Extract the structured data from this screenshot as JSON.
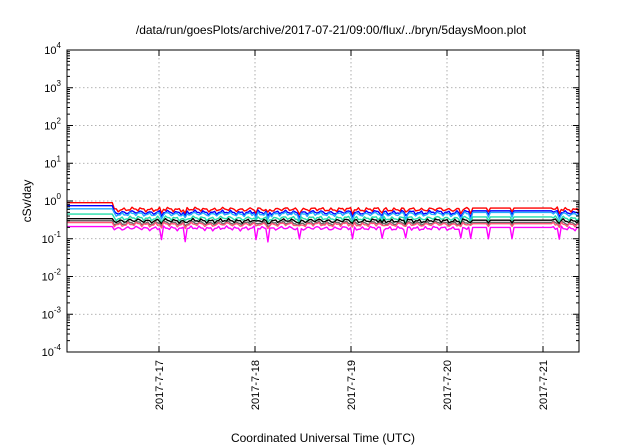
{
  "chart_data": {
    "type": "line",
    "title": "/data/run/goesPlots/archive/2017-07-21/09:00/flux/../bryn/5daysMoon.plot",
    "xlabel": "Coordinated Universal Time (UTC)",
    "ylabel": "cSv/day",
    "yscale": "log",
    "ylim": [
      0.0001,
      10000
    ],
    "y_ticks": [
      {
        "value": 0.0001,
        "base": "10",
        "exp": "-4"
      },
      {
        "value": 0.001,
        "base": "10",
        "exp": "-3"
      },
      {
        "value": 0.01,
        "base": "10",
        "exp": "-2"
      },
      {
        "value": 0.1,
        "base": "10",
        "exp": "-1"
      },
      {
        "value": 1,
        "base": "10",
        "exp": "0"
      },
      {
        "value": 10,
        "base": "10",
        "exp": "1"
      },
      {
        "value": 100,
        "base": "10",
        "exp": "2"
      },
      {
        "value": 1000,
        "base": "10",
        "exp": "3"
      },
      {
        "value": 10000,
        "base": "10",
        "exp": "4"
      }
    ],
    "xlim": [
      "2017-07-16 01:00",
      "2017-07-21 09:00"
    ],
    "x_ticks": [
      {
        "value": "2017-07-17 00:00",
        "label": "2017-7-17"
      },
      {
        "value": "2017-07-18 00:00",
        "label": "2017-7-18"
      },
      {
        "value": "2017-07-19 00:00",
        "label": "2017-7-19"
      },
      {
        "value": "2017-07-20 00:00",
        "label": "2017-7-20"
      },
      {
        "value": "2017-07-21 00:00",
        "label": "2017-7-21"
      }
    ],
    "grid": true,
    "legend": "none",
    "series": [
      {
        "color": "#ff0000",
        "base": 0.6,
        "early": 0.9,
        "late": 0.65,
        "dip": 0.8
      },
      {
        "color": "#0000ff",
        "base": 0.5,
        "early": 0.75,
        "late": 0.55,
        "dip": 0.8
      },
      {
        "color": "#22aaff",
        "base": 0.45,
        "early": 0.62,
        "late": 0.5,
        "dip": 0.75
      },
      {
        "color": "#22ddaa",
        "base": 0.35,
        "early": 0.45,
        "late": 0.38,
        "dip": 0.8
      },
      {
        "color": "#000000",
        "base": 0.3,
        "early": 0.34,
        "late": 0.31,
        "dip": 0.85
      },
      {
        "color": "#666666",
        "base": 0.26,
        "early": 0.3,
        "late": 0.27,
        "dip": 0.85
      },
      {
        "color": "#ff5577",
        "base": 0.24,
        "early": 0.27,
        "late": 0.25,
        "dip": 0.85
      },
      {
        "color": "#ff00ff",
        "base": 0.19,
        "early": 0.21,
        "late": 0.2,
        "dip": 0.5
      }
    ]
  }
}
